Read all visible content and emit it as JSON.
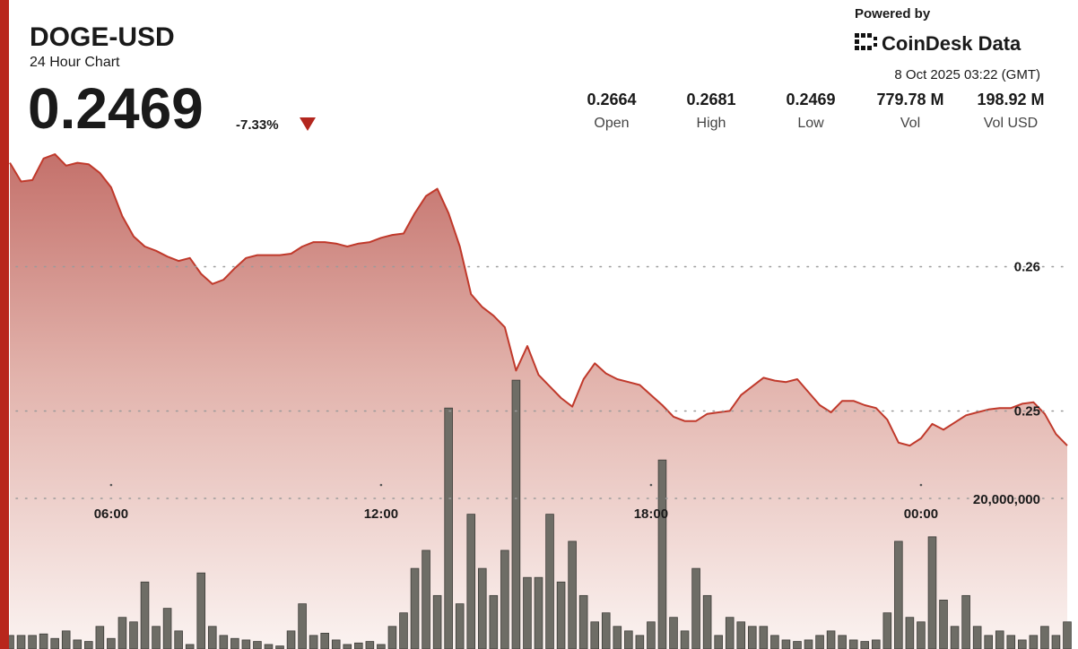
{
  "header": {
    "title": "DOGE-USD",
    "subtitle": "24 Hour Chart",
    "price": "0.2469",
    "change": "-7.33%",
    "powered_by": "Powered by",
    "brand": "CoinDesk Data",
    "timestamp": "8 Oct 2025 03:22 (GMT)",
    "stats": [
      {
        "value": "0.2664",
        "label": "Open"
      },
      {
        "value": "0.2681",
        "label": "High"
      },
      {
        "value": "0.2469",
        "label": "Low"
      },
      {
        "value": "779.78 M",
        "label": "Vol"
      },
      {
        "value": "198.92 M",
        "label": "Vol USD"
      }
    ]
  },
  "chart_data": {
    "type": "area",
    "x": [
      3.75,
      4,
      4.25,
      4.5,
      4.75,
      5,
      5.25,
      5.5,
      5.75,
      6,
      6.25,
      6.5,
      6.75,
      7,
      7.25,
      7.5,
      7.75,
      8,
      8.25,
      8.5,
      8.75,
      9,
      9.25,
      9.5,
      9.75,
      10,
      10.25,
      10.5,
      10.75,
      11,
      11.25,
      11.5,
      11.75,
      12,
      12.25,
      12.5,
      12.75,
      13,
      13.25,
      13.5,
      13.75,
      14,
      14.25,
      14.5,
      14.75,
      15,
      15.25,
      15.5,
      15.75,
      16,
      16.25,
      16.5,
      16.75,
      17,
      17.25,
      17.5,
      17.75,
      18,
      18.25,
      18.5,
      18.75,
      19,
      19.25,
      19.5,
      19.75,
      20,
      20.25,
      20.5,
      20.75,
      21,
      21.25,
      21.5,
      21.75,
      22,
      22.25,
      22.5,
      22.75,
      23,
      23.25,
      23.5,
      23.75,
      24,
      24.25,
      24.5,
      24.75,
      25,
      25.25,
      25.5,
      25.75,
      26,
      26.25,
      26.5,
      26.75,
      27,
      27.25
    ],
    "xlim": [
      3.73,
      27.33
    ],
    "xticks": [
      {
        "value": 6,
        "label": "06:00"
      },
      {
        "value": 12,
        "label": "12:00"
      },
      {
        "value": 18,
        "label": "18:00"
      },
      {
        "value": 24,
        "label": "00:00"
      }
    ],
    "ylim": [
      0.2335,
      0.2673
    ],
    "yticks": [
      0.26,
      0.25
    ],
    "y2lim": [
      0,
      40000000
    ],
    "y2ticks": [
      {
        "value": 20000000,
        "label": "20,000,000"
      }
    ],
    "grid": true,
    "series": [
      {
        "type": "line",
        "color": "#c0392b",
        "values": [
          0.2672,
          0.2659,
          0.266,
          0.2675,
          0.2678,
          0.267,
          0.2672,
          0.2671,
          0.2665,
          0.2655,
          0.2635,
          0.2621,
          0.2614,
          0.2611,
          0.2607,
          0.2604,
          0.2606,
          0.2595,
          0.2588,
          0.2591,
          0.2599,
          0.2606,
          0.2608,
          0.2608,
          0.2608,
          0.2609,
          0.2614,
          0.2617,
          0.2617,
          0.2616,
          0.2614,
          0.2616,
          0.2617,
          0.262,
          0.2622,
          0.2623,
          0.2637,
          0.2649,
          0.2654,
          0.2637,
          0.2614,
          0.2581,
          0.2572,
          0.2566,
          0.2558,
          0.2528,
          0.2545,
          0.2525,
          0.2517,
          0.2509,
          0.2503,
          0.2522,
          0.2533,
          0.2526,
          0.2522,
          0.252,
          0.2518,
          0.2511,
          0.2504,
          0.2496,
          0.2493,
          0.2493,
          0.2498,
          0.2499,
          0.25,
          0.2511,
          0.2517,
          0.2523,
          0.2521,
          0.252,
          0.2522,
          0.2513,
          0.2504,
          0.2499,
          0.2507,
          0.2507,
          0.2504,
          0.2502,
          0.2494,
          0.2478,
          0.2476,
          0.2481,
          0.2491,
          0.2487,
          0.2492,
          0.2497,
          0.2499,
          0.2501,
          0.2502,
          0.2502,
          0.2505,
          0.2506,
          0.2498,
          0.2484,
          0.2476
        ]
      },
      {
        "type": "bar",
        "axis": "y2",
        "color": "#6e6d66",
        "values": [
          1800000,
          1800000,
          1800000,
          2000000,
          1400000,
          2400000,
          1200000,
          1000000,
          3000000,
          1400000,
          4200000,
          3600000,
          8900000,
          3000000,
          5400000,
          2400000,
          600000,
          10100000,
          3000000,
          1800000,
          1400000,
          1200000,
          1000000,
          600000,
          400000,
          2400000,
          6000000,
          1800000,
          2100000,
          1200000,
          600000,
          800000,
          1000000,
          600000,
          3000000,
          4800000,
          10700000,
          13100000,
          7100000,
          32000000,
          6000000,
          17900000,
          10700000,
          7100000,
          13100000,
          35700000,
          9500000,
          9500000,
          17900000,
          8900000,
          14300000,
          7100000,
          3600000,
          4800000,
          3000000,
          2400000,
          1800000,
          3600000,
          25100000,
          4200000,
          2400000,
          10700000,
          7100000,
          1800000,
          4200000,
          3600000,
          3000000,
          3000000,
          1800000,
          1200000,
          1000000,
          1200000,
          1800000,
          2400000,
          1800000,
          1200000,
          1000000,
          1200000,
          4800000,
          14300000,
          4200000,
          3600000,
          14900000,
          6500000,
          3000000,
          7100000,
          3000000,
          1800000,
          2400000,
          1800000,
          1200000,
          1800000,
          3000000,
          1800000,
          3600000
        ]
      }
    ]
  }
}
